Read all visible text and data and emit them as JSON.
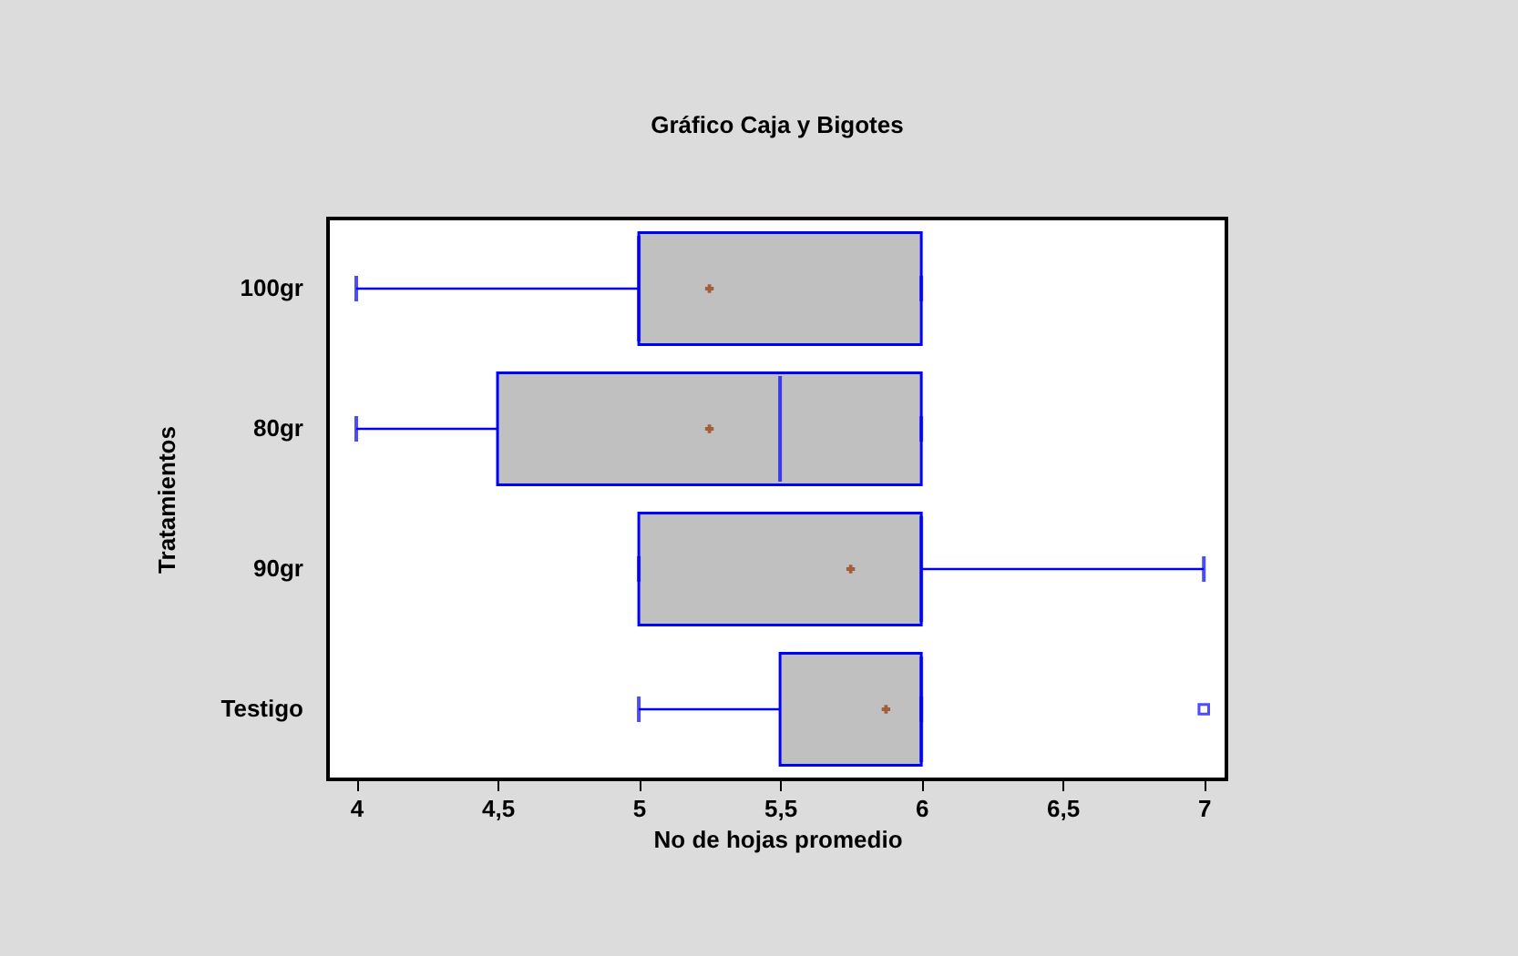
{
  "chart_data": {
    "type": "box",
    "title": "Gráfico Caja y Bigotes",
    "xlabel": "No de hojas promedio",
    "ylabel": "Tratamientos",
    "orientation": "horizontal",
    "categories": [
      "100gr",
      "80gr",
      "90gr",
      "Testigo"
    ],
    "xlim": [
      3.9,
      7.08
    ],
    "xticks": [
      4,
      {
        "value": 4.5,
        "label": "4,5"
      },
      5,
      {
        "value": 5.5,
        "label": "5,5"
      },
      6,
      {
        "value": 6.5,
        "label": "6,5"
      },
      7
    ],
    "series": [
      {
        "color": "#c0c0c0",
        "boxes": [
          {
            "low": 4,
            "q1": 5,
            "median": 5,
            "q3": 6,
            "high": 6,
            "mean": 5.25
          },
          {
            "low": 4,
            "q1": 4.5,
            "median": 5.5,
            "q3": 6,
            "high": 6,
            "mean": 5.25
          },
          {
            "low": 5,
            "q1": 5,
            "median": 6,
            "q3": 6,
            "high": 7,
            "mean": 5.75
          },
          {
            "low": 5,
            "q1": 5.5,
            "median": 6,
            "q3": 6,
            "high": 6,
            "mean": 5.875,
            "outliers": [
              7
            ]
          }
        ]
      }
    ]
  }
}
